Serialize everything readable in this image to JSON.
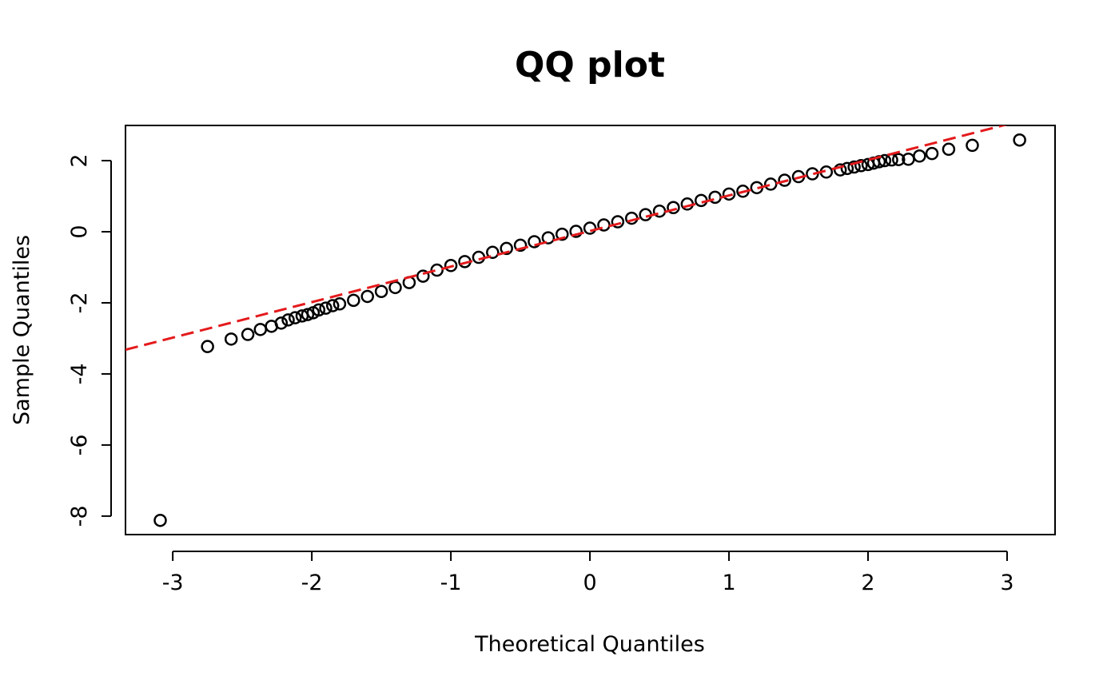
{
  "chart_data": {
    "type": "scatter",
    "title": "QQ plot",
    "x_label": "Theoretical Quantiles",
    "y_label": "Sample Quantiles",
    "x": [
      -3.09,
      -2.75,
      -2.58,
      -2.46,
      -2.37,
      -2.29,
      -2.22,
      -2.17,
      -2.12,
      -2.07,
      -2.03,
      -1.99,
      -1.95,
      -1.9,
      -1.85,
      -1.8,
      -1.7,
      -1.6,
      -1.5,
      -1.4,
      -1.3,
      -1.2,
      -1.1,
      -1.0,
      -0.9,
      -0.8,
      -0.7,
      -0.6,
      -0.5,
      -0.4,
      -0.3,
      -0.2,
      -0.1,
      0,
      0.1,
      0.2,
      0.3,
      0.4,
      0.5,
      0.6,
      0.7,
      0.8,
      0.9,
      1.0,
      1.1,
      1.2,
      1.3,
      1.4,
      1.5,
      1.6,
      1.7,
      1.8,
      1.85,
      1.9,
      1.95,
      2.0,
      2.04,
      2.08,
      2.12,
      2.17,
      2.22,
      2.29,
      2.37,
      2.46,
      2.58,
      2.75,
      3.09
    ],
    "values": [
      -8.12,
      -3.23,
      -3.02,
      -2.89,
      -2.75,
      -2.66,
      -2.57,
      -2.48,
      -2.42,
      -2.37,
      -2.33,
      -2.28,
      -2.2,
      -2.15,
      -2.08,
      -2.03,
      -1.93,
      -1.82,
      -1.68,
      -1.57,
      -1.43,
      -1.25,
      -1.08,
      -0.95,
      -0.84,
      -0.72,
      -0.58,
      -0.47,
      -0.38,
      -0.28,
      -0.17,
      -0.07,
      0.01,
      0.1,
      0.19,
      0.28,
      0.38,
      0.48,
      0.58,
      0.68,
      0.78,
      0.88,
      0.97,
      1.06,
      1.14,
      1.24,
      1.34,
      1.45,
      1.55,
      1.63,
      1.68,
      1.74,
      1.78,
      1.82,
      1.86,
      1.89,
      1.93,
      1.97,
      2.0,
      2.02,
      2.03,
      2.04,
      2.13,
      2.2,
      2.32,
      2.43,
      2.58
    ],
    "color": "#000000",
    "reference_line": {
      "intercept": 0.02,
      "slope": 1.0,
      "color": "#e41a1c",
      "dashed": true
    },
    "xlim": [
      -3.34,
      3.345
    ],
    "ylim": [
      -8.52,
      2.99
    ],
    "xticks": [
      -3,
      -2,
      -1,
      0,
      1,
      2,
      3
    ],
    "yticks": [
      -8,
      -6,
      -4,
      -2,
      0,
      2
    ]
  }
}
